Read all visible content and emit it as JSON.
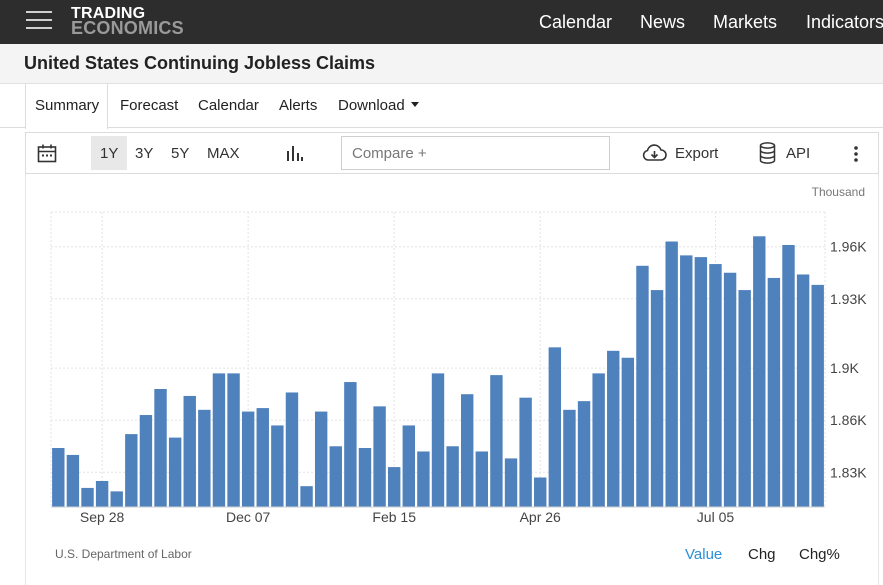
{
  "brand": {
    "line1": "TRADING",
    "line2": "ECONOMICS"
  },
  "nav": {
    "calendar": "Calendar",
    "news": "News",
    "markets": "Markets",
    "indicators": "Indicators"
  },
  "page": {
    "title": "United States Continuing Jobless Claims"
  },
  "tabs": {
    "summary": "Summary",
    "forecast": "Forecast",
    "calendar": "Calendar",
    "alerts": "Alerts",
    "download": "Download"
  },
  "toolbar": {
    "range_1y": "1Y",
    "range_3y": "3Y",
    "range_5y": "5Y",
    "range_max": "MAX",
    "compare_placeholder": "Compare +",
    "export_label": "Export",
    "api_label": "API"
  },
  "footer": {
    "source": "U.S. Department of Labor",
    "value_tab": "Value",
    "chg_tab": "Chg",
    "chgpct_tab": "Chg%"
  },
  "colors": {
    "bar": "#4f81bd",
    "active_tab": "#2a8ed8"
  },
  "chart_data": {
    "type": "bar",
    "unit_label": "Thousand",
    "x_tick_labels": [
      "Sep 28",
      "Dec 07",
      "Feb 15",
      "Apr 26",
      "Jul 05"
    ],
    "x_tick_indices": [
      3,
      13,
      23,
      33,
      45
    ],
    "ylim": [
      1810,
      1980
    ],
    "y_ticks": [
      1830,
      1860,
      1890,
      1930,
      1960
    ],
    "y_tick_labels": [
      "1.83K",
      "1.86K",
      "1.9K",
      "1.93K",
      "1.96K"
    ],
    "grid": true,
    "values": [
      1844,
      1840,
      1821,
      1825,
      1819,
      1852,
      1863,
      1878,
      1850,
      1874,
      1866,
      1887,
      1887,
      1865,
      1867,
      1857,
      1876,
      1822,
      1865,
      1845,
      1882,
      1844,
      1868,
      1833,
      1857,
      1842,
      1887,
      1845,
      1875,
      1842,
      1886,
      1838,
      1873,
      1827,
      1902,
      1866,
      1871,
      1887,
      1900,
      1896,
      1949,
      1935,
      1963,
      1955,
      1954,
      1950,
      1945,
      1935,
      1966,
      1942,
      1961,
      1944,
      1938
    ]
  }
}
